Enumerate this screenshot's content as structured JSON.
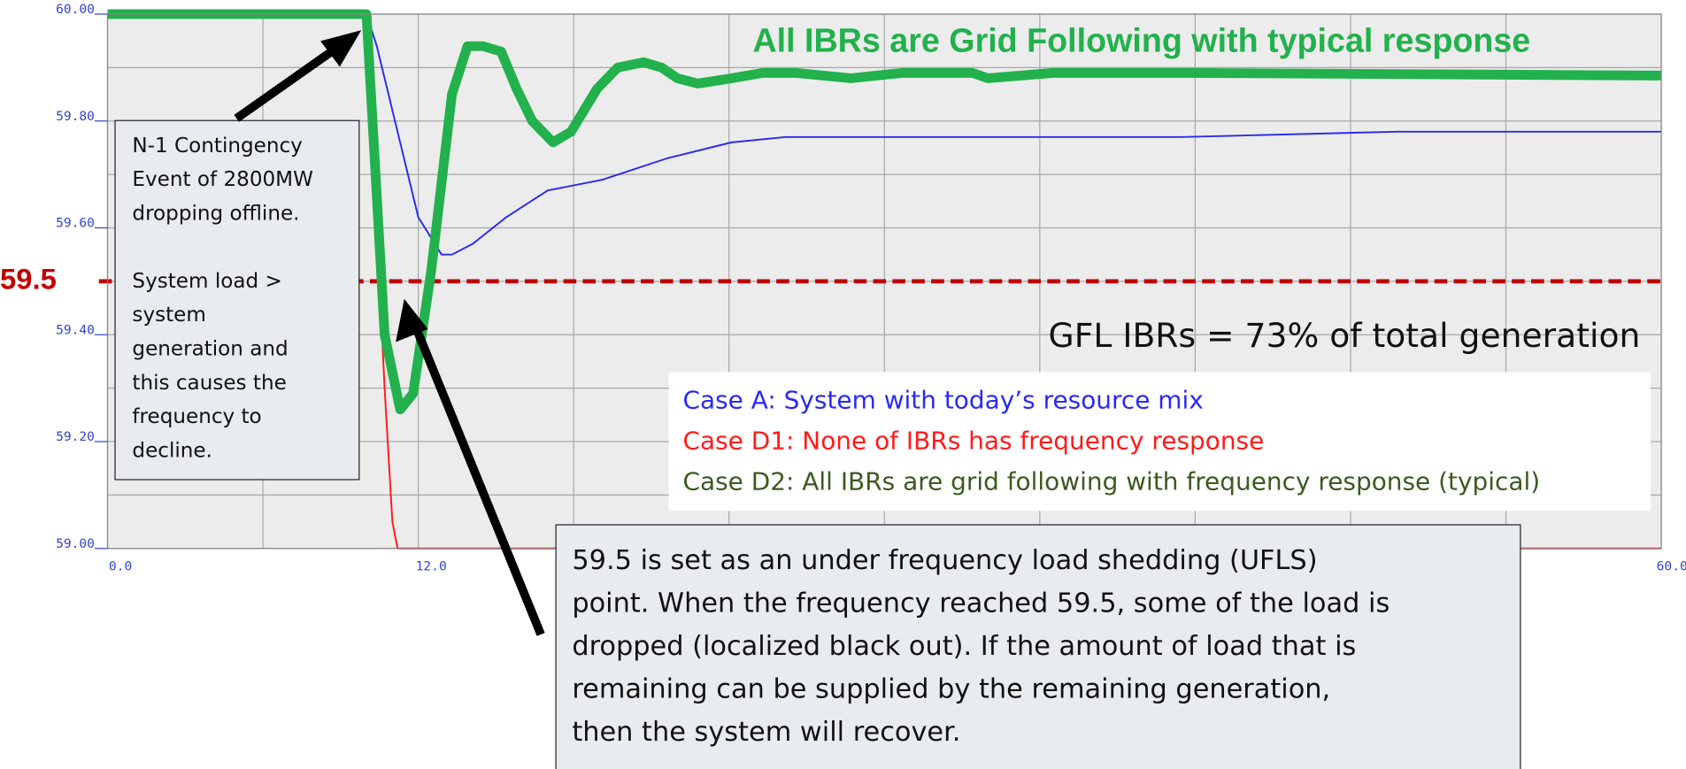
{
  "chart_data": {
    "type": "line",
    "title": "All IBRs are Grid Following with typical response",
    "title_color": "#22b14c",
    "subtitle": "GFL IBRs = 73% of total generation",
    "xlim": [
      0,
      60
    ],
    "ylim": [
      59.0,
      60.0
    ],
    "xticks": [
      {
        "value": 0,
        "label": "0.0"
      },
      {
        "value": 6,
        "label": null
      },
      {
        "value": 12,
        "label": "12.0"
      },
      {
        "value": 18,
        "label": null
      },
      {
        "value": 24,
        "label": null
      },
      {
        "value": 30,
        "label": null
      },
      {
        "value": 36,
        "label": null
      },
      {
        "value": 42,
        "label": null
      },
      {
        "value": 48,
        "label": null
      },
      {
        "value": 54,
        "label": null
      },
      {
        "value": 60,
        "label": "60.0"
      }
    ],
    "yticks": [
      {
        "value": 59.0,
        "label": "59.00"
      },
      {
        "value": 59.1,
        "label": null
      },
      {
        "value": 59.2,
        "label": "59.20"
      },
      {
        "value": 59.3,
        "label": null
      },
      {
        "value": 59.4,
        "label": "59.40"
      },
      {
        "value": 59.5,
        "label": null
      },
      {
        "value": 59.6,
        "label": "59.60"
      },
      {
        "value": 59.7,
        "label": null
      },
      {
        "value": 59.8,
        "label": "59.80"
      },
      {
        "value": 59.9,
        "label": null
      },
      {
        "value": 60.0,
        "label": "60.00"
      }
    ],
    "grid": true,
    "threshold": {
      "value": 59.5,
      "label": "59.5",
      "color": "#c00000"
    },
    "series": [
      {
        "name": "Case A: System with today’s resource mix",
        "color": "#2a2af0",
        "width": 1.6,
        "x": [
          0,
          10,
          10.4,
          11.2,
          12.0,
          12.9,
          13.3,
          14.1,
          15.4,
          17.0,
          19.1,
          21.6,
          24.1,
          26.2,
          33.2,
          41.5,
          49.8,
          60
        ],
        "values": [
          60.0,
          60.0,
          59.94,
          59.78,
          59.62,
          59.55,
          59.55,
          59.57,
          59.62,
          59.67,
          59.69,
          59.73,
          59.76,
          59.77,
          59.77,
          59.77,
          59.78,
          59.78
        ]
      },
      {
        "name": "Case D1: None of IBRs has frequency response",
        "color": "#ff1a1a",
        "width": 1.6,
        "x": [
          0,
          10,
          10.5,
          10.7,
          11.0,
          11.2,
          60
        ],
        "values": [
          60.0,
          60.0,
          59.5,
          59.3,
          59.05,
          59.0,
          59.0
        ]
      },
      {
        "name": "Case D2: All IBRs are grid following with frequency response (typical)",
        "color": "#22b14c",
        "legend_color": "#3b5a1f",
        "width": 9,
        "x": [
          0,
          10,
          10.7,
          11.3,
          11.8,
          12.5,
          13.3,
          13.9,
          14.5,
          15.2,
          15.8,
          16.4,
          17.2,
          17.9,
          18.9,
          19.7,
          20.7,
          21.4,
          22.0,
          22.8,
          24.1,
          25.3,
          26.6,
          28.7,
          30.7,
          33.4,
          34.0,
          36.5,
          41.5,
          60
        ],
        "values": [
          60.0,
          60.0,
          59.4,
          59.26,
          59.29,
          59.52,
          59.85,
          59.94,
          59.94,
          59.93,
          59.86,
          59.8,
          59.76,
          59.78,
          59.86,
          59.9,
          59.91,
          59.9,
          59.88,
          59.87,
          59.88,
          59.89,
          59.89,
          59.88,
          59.89,
          59.89,
          59.88,
          59.89,
          59.89,
          59.885
        ]
      }
    ],
    "annotations": {
      "event_box": [
        [
          "N-1  Contingency",
          "Event of 2800MW",
          "dropping offline."
        ],
        [
          "System load >",
          "system",
          "generation and",
          "this causes the",
          "frequency to",
          "decline."
        ]
      ],
      "ufls_box": [
        "59.5 is set as an under frequency load shedding (UFLS)",
        "point. When the frequency reached 59.5, some of the load is",
        "dropped (localized black out). If the amount of load that is",
        "remaining can be supplied by the remaining generation,",
        "then the system will recover."
      ]
    }
  }
}
